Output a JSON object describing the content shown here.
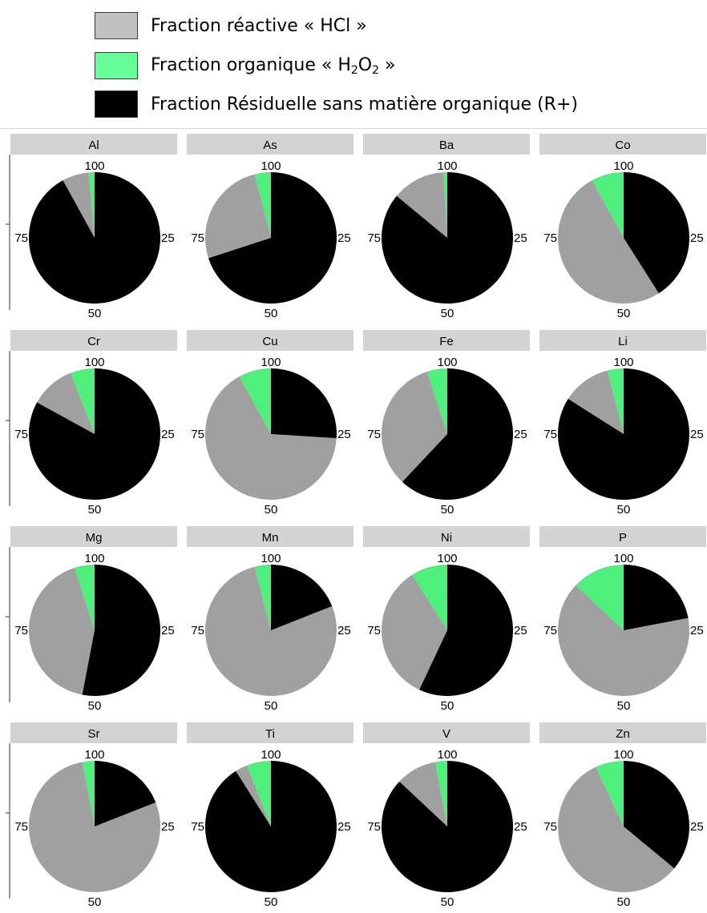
{
  "legend": {
    "items": [
      {
        "label_pre": "Fraction réactive « HCl »",
        "sub1": "",
        "mid": "",
        "sub2": "",
        "label_post": "",
        "color": "#c0c0c0"
      },
      {
        "label_pre": "Fraction organique « H",
        "sub1": "2",
        "mid": "O",
        "sub2": "2",
        "label_post": " »",
        "color": "#66ff99"
      },
      {
        "label_pre": "Fraction Résiduelle sans matière organique (R+)",
        "sub1": "",
        "mid": "",
        "sub2": "",
        "label_post": "",
        "color": "#000000"
      }
    ]
  },
  "chart_data": {
    "type": "pie",
    "slice_order": [
      "Fraction organique « H2O2 »",
      "Fraction réactive « HCl »",
      "Fraction Résiduelle sans matière organique (R+)"
    ],
    "colors": {
      "organic": "#4cf07b",
      "reactive": "#a0a0a0",
      "residual": "#000000"
    },
    "angular_tick_labels": [
      "100",
      "25",
      "50",
      "75"
    ],
    "panels": [
      {
        "name": "Al",
        "organic": 1.5,
        "reactive": 6.5,
        "residual": 92
      },
      {
        "name": "As",
        "organic": 4,
        "reactive": 26,
        "residual": 70
      },
      {
        "name": "Ba",
        "organic": 1,
        "reactive": 13,
        "residual": 86
      },
      {
        "name": "Co",
        "organic": 8,
        "reactive": 51,
        "residual": 41
      },
      {
        "name": "Cr",
        "organic": 6,
        "reactive": 11,
        "residual": 83
      },
      {
        "name": "Cu",
        "organic": 8,
        "reactive": 66,
        "residual": 26
      },
      {
        "name": "Fe",
        "organic": 5,
        "reactive": 33,
        "residual": 62
      },
      {
        "name": "Li",
        "organic": 4,
        "reactive": 12,
        "residual": 84
      },
      {
        "name": "Mg",
        "organic": 5,
        "reactive": 42,
        "residual": 53
      },
      {
        "name": "Mn",
        "organic": 4,
        "reactive": 77,
        "residual": 19
      },
      {
        "name": "Ni",
        "organic": 9,
        "reactive": 34,
        "residual": 57
      },
      {
        "name": "P",
        "organic": 13,
        "reactive": 65,
        "residual": 22
      },
      {
        "name": "Sr",
        "organic": 3,
        "reactive": 78,
        "residual": 19
      },
      {
        "name": "Ti",
        "organic": 6,
        "reactive": 3,
        "residual": 91
      },
      {
        "name": "V",
        "organic": 3,
        "reactive": 10,
        "residual": 87
      },
      {
        "name": "Zn",
        "organic": 7,
        "reactive": 57,
        "residual": 36
      }
    ]
  }
}
